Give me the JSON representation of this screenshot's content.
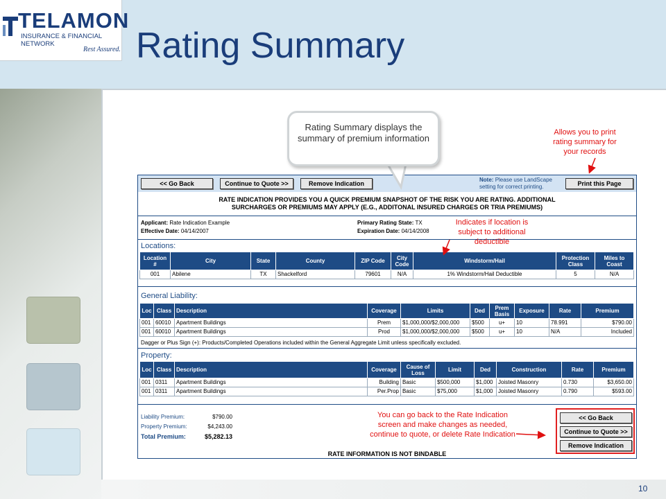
{
  "brand": {
    "name": "TELAMON",
    "subtitle": "INSURANCE & FINANCIAL NETWORK",
    "tagline": "Rest Assured."
  },
  "title": "Rating Summary",
  "page_number": "10",
  "toolbar": {
    "go_back": "<< Go Back",
    "continue": "Continue to Quote >>",
    "remove": "Remove Indication",
    "note_label": "Note:",
    "note_text": "Please use LandScape setting for correct printing.",
    "print": "Print this Page"
  },
  "disclaimer_1": "RATE INDICATION PROVIDES YOU A QUICK PREMIUM SNAPSHOT OF THE RISK YOU ARE RATING. ADDITIONAL",
  "disclaimer_2": "SURCHARGES OR PREMIUMS MAY APPLY (E.G., ADDITONAL INSURED CHARGES OR TRIA PREMIUMS)",
  "info": {
    "applicant_label": "Applicant:",
    "applicant": "Rate Indication Example",
    "effective_label": "Effective Date:",
    "effective": "04/14/2007",
    "state_label": "Primary Rating State:",
    "state": "TX",
    "expiration_label": "Expiration Date:",
    "expiration": "04/14/2008"
  },
  "locations": {
    "heading": "Locations:",
    "headers": [
      "Location #",
      "City",
      "State",
      "County",
      "ZIP Code",
      "City Code",
      "Windstorm/Hail",
      "Protection Class",
      "Miles to Coast"
    ],
    "rows": [
      [
        "001",
        "Abilene",
        "TX",
        "Shackelford",
        "79601",
        "N/A",
        "1% Windstorm/Hail Deductible",
        "5",
        "N/A"
      ]
    ]
  },
  "general_liability": {
    "heading": "General Liability:",
    "headers": [
      "Loc",
      "Class",
      "Description",
      "Coverage",
      "Limits",
      "Ded",
      "Prem Basis",
      "Exposure",
      "Rate",
      "Premium"
    ],
    "rows": [
      [
        "001",
        "60010",
        "Apartment Buildings",
        "Prem",
        "$1,000,000/$2,000,000",
        "$500",
        "u+",
        "10",
        "78.991",
        "$790.00"
      ],
      [
        "001",
        "60010",
        "Apartment Buildings",
        "Prod",
        "$1,000,000/$2,000,000",
        "$500",
        "u+",
        "10",
        "N/A",
        "Included"
      ]
    ],
    "footnote": "Dagger or Plus Sign (+): Products/Completed Operations included within the General Aggregate Limit unless specifically excluded."
  },
  "property": {
    "heading": "Property:",
    "headers": [
      "Loc",
      "Class",
      "Description",
      "Coverage",
      "Cause of Loss",
      "Limit",
      "Ded",
      "Construction",
      "Rate",
      "Premium"
    ],
    "rows": [
      [
        "001",
        "0311",
        "Apartment Buildings",
        "Building",
        "Basic",
        "$500,000",
        "$1,000",
        "Joisted Masonry",
        "0.730",
        "$3,650.00"
      ],
      [
        "001",
        "0311",
        "Apartment Buildings",
        "Per.Prop",
        "Basic",
        "$75,000",
        "$1,000",
        "Joisted Masonry",
        "0.790",
        "$593.00"
      ]
    ]
  },
  "totals": {
    "liability_label": "Liability Premium:",
    "liability": "$790.00",
    "property_label": "Property Premium:",
    "property": "$4,243.00",
    "total_label": "Total Premium:",
    "total": "$5,282.13"
  },
  "not_bindable": "RATE INFORMATION IS NOT BINDABLE",
  "callouts": {
    "bubble": "Rating Summary displays the summary of premium information",
    "print": "Allows you to print rating summary for your records",
    "deductible": "Indicates if location is subject to additional deductible",
    "back": "You can go back to the Rate Indication screen and make changes as needed, continue to quote, or delete Rate Indication"
  },
  "colors": {
    "title": "#1a3d7a",
    "header_band": "#d3e5f0",
    "table_header": "#1e4b85",
    "callout_red": "#e01010"
  }
}
